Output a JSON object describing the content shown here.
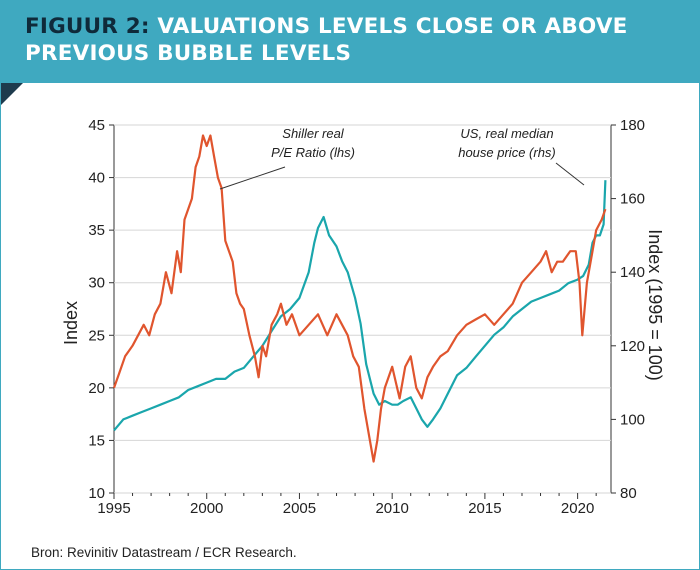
{
  "header": {
    "title_lead": "FIGUUR 2:",
    "title_rest": "VALUATIONS LEVELS CLOSE OR ABOVE PREVIOUS BUBBLE LEVELS"
  },
  "footer": {
    "source": "Bron: Revinitiv Datastream / ECR Research."
  },
  "colors": {
    "banner": "#3fa9c0",
    "fold": "#1e3b4d",
    "title_lead": "#0f2a3a",
    "pe_series": "#e0552e",
    "house_series": "#1aa6ac"
  },
  "chart_data": {
    "type": "line",
    "xlim": [
      1995,
      2021.8
    ],
    "x_ticks": [
      "1995",
      "2000",
      "2005",
      "2010",
      "2015",
      "2020"
    ],
    "left_axis": {
      "label": "Index",
      "ylim": [
        10,
        45
      ],
      "ticks": [
        "10",
        "15",
        "20",
        "25",
        "30",
        "35",
        "40",
        "45"
      ]
    },
    "right_axis": {
      "label": "Index (1995 = 100)",
      "ylim": [
        80,
        180
      ],
      "ticks": [
        "80",
        "100",
        "120",
        "140",
        "160",
        "180"
      ]
    },
    "annotations": {
      "pe": [
        "Shiller real",
        "P/E Ratio (lhs)"
      ],
      "house": [
        "US, real median",
        "house price (rhs)"
      ]
    },
    "series": [
      {
        "name": "Shiller real P/E Ratio (lhs)",
        "axis": "left",
        "x": [
          1995.0,
          1995.3,
          1995.6,
          1996.0,
          1996.3,
          1996.6,
          1996.9,
          1997.2,
          1997.5,
          1997.8,
          1998.1,
          1998.4,
          1998.6,
          1998.8,
          1999.0,
          1999.2,
          1999.4,
          1999.6,
          1999.8,
          2000.0,
          2000.2,
          2000.4,
          2000.6,
          2000.8,
          2001.0,
          2001.2,
          2001.4,
          2001.6,
          2001.8,
          2002.0,
          2002.3,
          2002.6,
          2002.8,
          2003.0,
          2003.2,
          2003.5,
          2003.8,
          2004.0,
          2004.3,
          2004.6,
          2005.0,
          2005.5,
          2006.0,
          2006.5,
          2007.0,
          2007.3,
          2007.6,
          2007.9,
          2008.2,
          2008.5,
          2008.8,
          2009.0,
          2009.2,
          2009.4,
          2009.6,
          2010.0,
          2010.4,
          2010.7,
          2011.0,
          2011.3,
          2011.6,
          2011.9,
          2012.2,
          2012.6,
          2013.0,
          2013.5,
          2014.0,
          2014.5,
          2015.0,
          2015.5,
          2016.0,
          2016.5,
          2017.0,
          2017.5,
          2018.0,
          2018.3,
          2018.6,
          2018.9,
          2019.2,
          2019.6,
          2019.9,
          2020.1,
          2020.25,
          2020.5,
          2020.8,
          2021.0,
          2021.3,
          2021.5
        ],
        "y": [
          20,
          21.5,
          23,
          24,
          25,
          26,
          25,
          27,
          28,
          31,
          29,
          33,
          31,
          36,
          37,
          38,
          41,
          42,
          44,
          43,
          44,
          42,
          40,
          39,
          34,
          33,
          32,
          29,
          28,
          27.5,
          25,
          23,
          21,
          24,
          23,
          26,
          27,
          28,
          26,
          27,
          25,
          26,
          27,
          25,
          27,
          26,
          25,
          23,
          22,
          18,
          15,
          13,
          15,
          18,
          20,
          22,
          19,
          22,
          23,
          20,
          19,
          21,
          22,
          23,
          23.5,
          25,
          26,
          26.5,
          27,
          26,
          27,
          28,
          30,
          31,
          32,
          33,
          31,
          32,
          32,
          33,
          33,
          30,
          25,
          30,
          33,
          35,
          36,
          37
        ]
      },
      {
        "name": "US, real median house price (rhs)",
        "axis": "right",
        "x": [
          1995.0,
          1995.5,
          1996.0,
          1996.5,
          1997.0,
          1997.5,
          1998.0,
          1998.5,
          1999.0,
          1999.5,
          2000.0,
          2000.5,
          2001.0,
          2001.5,
          2002.0,
          2002.5,
          2003.0,
          2003.5,
          2004.0,
          2004.5,
          2005.0,
          2005.5,
          2005.8,
          2006.0,
          2006.3,
          2006.6,
          2007.0,
          2007.3,
          2007.6,
          2008.0,
          2008.3,
          2008.6,
          2009.0,
          2009.3,
          2009.6,
          2010.0,
          2010.3,
          2010.6,
          2011.0,
          2011.3,
          2011.6,
          2011.9,
          2012.2,
          2012.6,
          2013.0,
          2013.5,
          2014.0,
          2014.5,
          2015.0,
          2015.5,
          2016.0,
          2016.5,
          2017.0,
          2017.5,
          2018.0,
          2018.5,
          2019.0,
          2019.5,
          2020.0,
          2020.3,
          2020.6,
          2020.8,
          2021.0,
          2021.2,
          2021.4,
          2021.5
        ],
        "y": [
          97,
          100,
          101,
          102,
          103,
          104,
          105,
          106,
          108,
          109,
          110,
          111,
          111,
          113,
          114,
          117,
          120,
          124,
          128,
          130,
          133,
          140,
          148,
          152,
          155,
          150,
          147,
          143,
          140,
          133,
          126,
          115,
          107,
          104,
          105,
          104,
          104,
          105,
          106,
          103,
          100,
          98,
          100,
          103,
          107,
          112,
          114,
          117,
          120,
          123,
          125,
          128,
          130,
          132,
          133,
          134,
          135,
          137,
          138,
          139,
          142,
          148,
          150,
          150,
          153,
          165
        ]
      }
    ]
  }
}
